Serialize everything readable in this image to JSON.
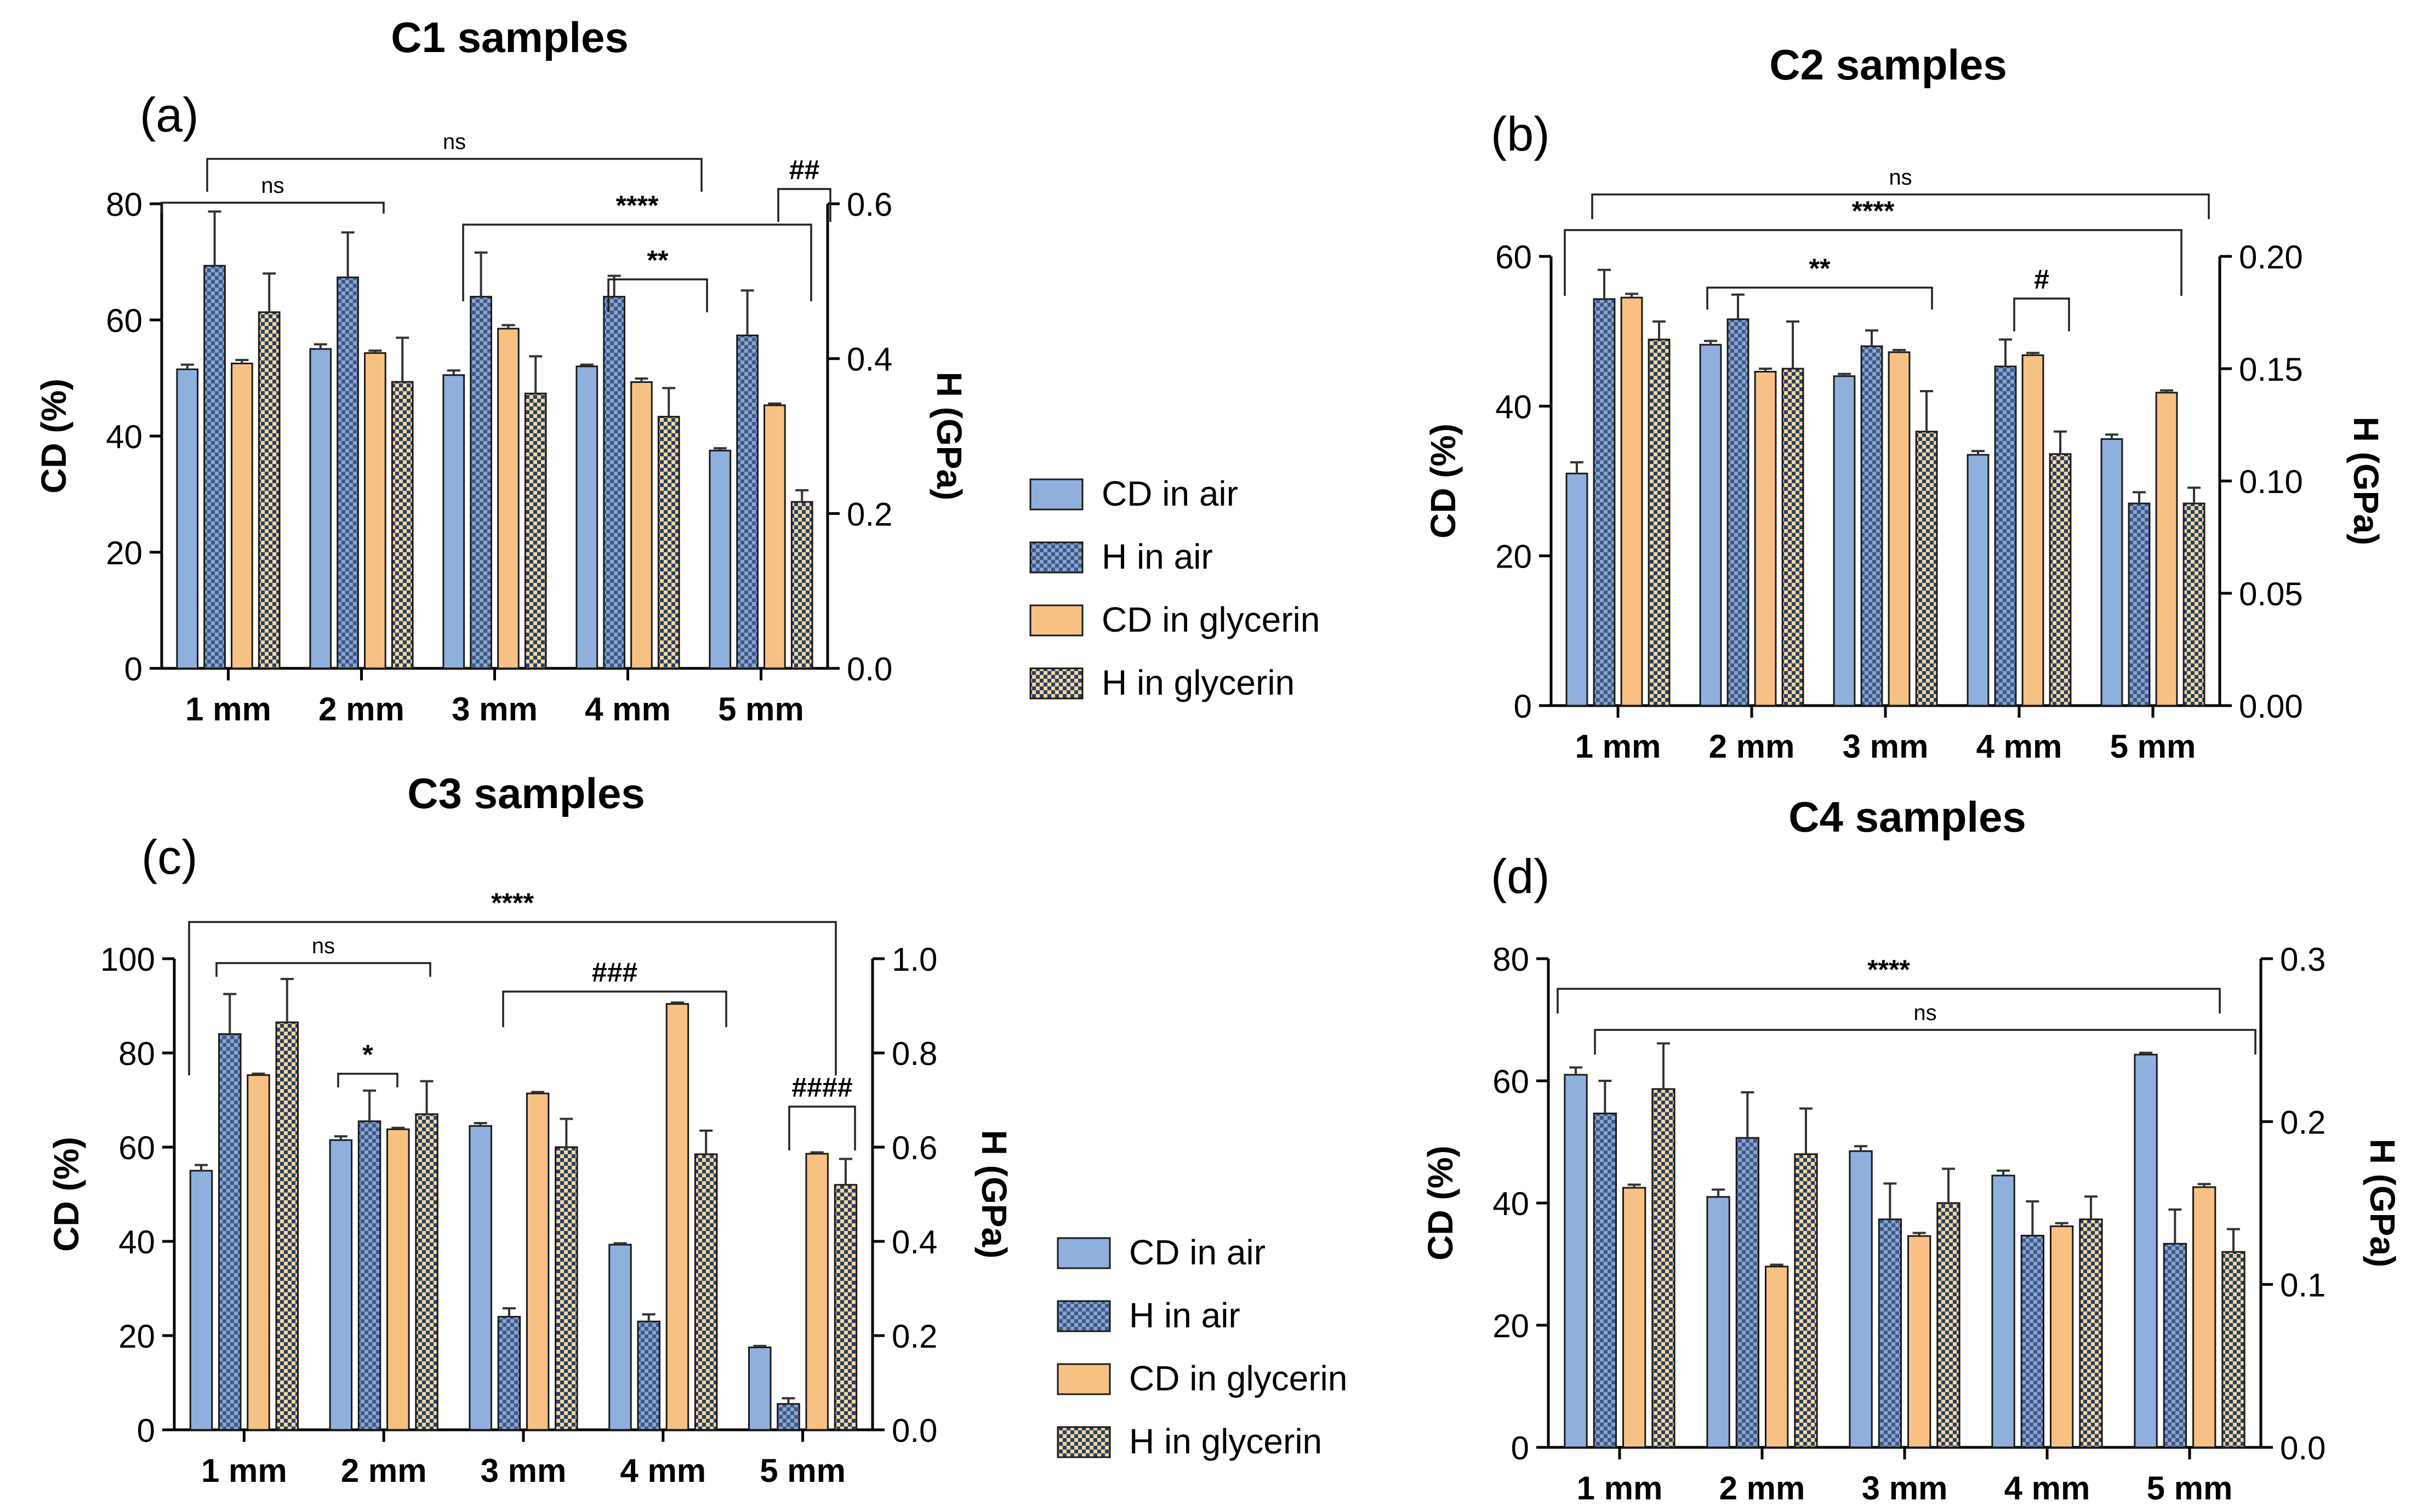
{
  "colors": {
    "cd_air": "#8fb0dd",
    "h_air_light": "#8aa3cf",
    "h_air_dark": "#3d5a86",
    "cd_gly": "#f6c183",
    "h_gly_light": "#f3d79c",
    "h_gly_dark": "#2c3e66",
    "axis": "#000000"
  },
  "chart_data": [
    {
      "id": "a",
      "type": "bar",
      "title": "C1 samples",
      "panel_label": "(a)",
      "categories": [
        "1 mm",
        "2 mm",
        "3 mm",
        "4 mm",
        "5 mm"
      ],
      "ylabel": "CD (%)",
      "y2label": "H (GPa)",
      "ylim": [
        0,
        80
      ],
      "y2lim": [
        0,
        0.6
      ],
      "yticks": [
        "0",
        "20",
        "40",
        "60",
        "80"
      ],
      "y2ticks": [
        "0.0",
        "0.2",
        "0.4",
        "0.6"
      ],
      "legend": [
        "CD in air",
        "H in air",
        "CD in glycerin",
        "H in glycerin"
      ],
      "series": [
        {
          "name": "CD in air",
          "axis": "left",
          "values": [
            51.5,
            55,
            50.5,
            52,
            37.5
          ],
          "errors": [
            0.8,
            0.8,
            0.8,
            0.3,
            0.4
          ]
        },
        {
          "name": "H in air",
          "axis": "right",
          "values": [
            0.52,
            0.505,
            0.48,
            0.48,
            0.43
          ],
          "errors": [
            0.07,
            0.058,
            0.057,
            0.027,
            0.058
          ]
        },
        {
          "name": "CD in glycerin",
          "axis": "left",
          "values": [
            52.5,
            54.3,
            58.5,
            49.3,
            45.3
          ],
          "errors": [
            0.6,
            0.4,
            0.6,
            0.6,
            0.3
          ]
        },
        {
          "name": "H in glycerin",
          "axis": "right",
          "values": [
            0.46,
            0.37,
            0.355,
            0.325,
            0.215
          ],
          "errors": [
            0.05,
            0.057,
            0.048,
            0.037,
            0.015
          ]
        }
      ],
      "significance": [
        {
          "label": "ns"
        },
        {
          "label": "ns"
        },
        {
          "label": "****"
        },
        {
          "label": "**"
        },
        {
          "label": "##"
        }
      ]
    },
    {
      "id": "b",
      "type": "bar",
      "title": "C2 samples",
      "panel_label": "(b)",
      "categories": [
        "1 mm",
        "2 mm",
        "3 mm",
        "4 mm",
        "5 mm"
      ],
      "ylabel": "CD (%)",
      "y2label": "H (GPa)",
      "ylim": [
        0,
        60
      ],
      "y2lim": [
        0,
        0.2
      ],
      "yticks": [
        "0",
        "20",
        "40",
        "60"
      ],
      "y2ticks": [
        "0.00",
        "0.05",
        "0.10",
        "0.15",
        "0.20"
      ],
      "legend": [],
      "series": [
        {
          "name": "CD in air",
          "axis": "left",
          "values": [
            31,
            48.2,
            44,
            33.5,
            35.6
          ],
          "errors": [
            1.5,
            0.5,
            0.3,
            0.5,
            0.6
          ]
        },
        {
          "name": "H in air",
          "axis": "right",
          "values": [
            0.181,
            0.172,
            0.16,
            0.151,
            0.09
          ],
          "errors": [
            0.013,
            0.011,
            0.007,
            0.012,
            0.005
          ]
        },
        {
          "name": "CD in glycerin",
          "axis": "left",
          "values": [
            54.5,
            44.6,
            47.2,
            46.8,
            41.8
          ],
          "errors": [
            0.5,
            0.4,
            0.3,
            0.3,
            0.3
          ]
        },
        {
          "name": "H in glycerin",
          "axis": "right",
          "values": [
            0.163,
            0.15,
            0.122,
            0.112,
            0.09
          ],
          "errors": [
            0.008,
            0.021,
            0.018,
            0.01,
            0.007
          ]
        }
      ],
      "significance": [
        {
          "label": "ns"
        },
        {
          "label": "****"
        },
        {
          "label": "**"
        },
        {
          "label": "#"
        }
      ]
    },
    {
      "id": "c",
      "type": "bar",
      "title": "C3 samples",
      "panel_label": "(c)",
      "categories": [
        "1 mm",
        "2 mm",
        "3 mm",
        "4 mm",
        "5 mm"
      ],
      "ylabel": "CD (%)",
      "y2label": "H (GPa)",
      "ylim": [
        0,
        100
      ],
      "y2lim": [
        0,
        1.0
      ],
      "yticks": [
        "0",
        "20",
        "40",
        "60",
        "80",
        "100"
      ],
      "y2ticks": [
        "0.0",
        "0.2",
        "0.4",
        "0.6",
        "0.8",
        "1.0"
      ],
      "legend": [
        "CD in air",
        "H in air",
        "CD in glycerin",
        "H in glycerin"
      ],
      "series": [
        {
          "name": "CD in air",
          "axis": "left",
          "values": [
            55,
            61.5,
            64.5,
            39.3,
            17.5
          ],
          "errors": [
            1.2,
            0.8,
            0.6,
            0.3,
            0.3
          ]
        },
        {
          "name": "H in air",
          "axis": "right",
          "values": [
            0.84,
            0.655,
            0.24,
            0.23,
            0.055
          ],
          "errors": [
            0.085,
            0.065,
            0.018,
            0.015,
            0.012
          ]
        },
        {
          "name": "CD in glycerin",
          "axis": "left",
          "values": [
            75.3,
            63.8,
            71.4,
            90.4,
            58.6
          ],
          "errors": [
            0.3,
            0.3,
            0.3,
            0.3,
            0.3
          ]
        },
        {
          "name": "H in glycerin",
          "axis": "right",
          "values": [
            0.865,
            0.67,
            0.6,
            0.585,
            0.52
          ],
          "errors": [
            0.092,
            0.07,
            0.06,
            0.05,
            0.055
          ]
        }
      ],
      "significance": [
        {
          "label": "****"
        },
        {
          "label": "ns"
        },
        {
          "label": "*"
        },
        {
          "label": "###"
        },
        {
          "label": "####"
        }
      ]
    },
    {
      "id": "d",
      "type": "bar",
      "title": "C4 samples",
      "panel_label": "(d)",
      "categories": [
        "1 mm",
        "2 mm",
        "3 mm",
        "4 mm",
        "5 mm"
      ],
      "ylabel": "CD (%)",
      "y2label": "H (GPa)",
      "ylim": [
        0,
        80
      ],
      "y2lim": [
        0,
        0.3
      ],
      "yticks": [
        "0",
        "20",
        "40",
        "60",
        "80"
      ],
      "y2ticks": [
        "0.0",
        "0.1",
        "0.2",
        "0.3"
      ],
      "legend": [],
      "series": [
        {
          "name": "CD in air",
          "axis": "left",
          "values": [
            61,
            41,
            48.5,
            44.5,
            64.3
          ],
          "errors": [
            1.2,
            1.2,
            0.8,
            0.8,
            0.3
          ]
        },
        {
          "name": "H in air",
          "axis": "right",
          "values": [
            0.205,
            0.19,
            0.14,
            0.13,
            0.125
          ],
          "errors": [
            0.02,
            0.028,
            0.022,
            0.021,
            0.021
          ]
        },
        {
          "name": "CD in glycerin",
          "axis": "left",
          "values": [
            42.5,
            29.6,
            34.6,
            36.2,
            42.6
          ],
          "errors": [
            0.5,
            0.3,
            0.5,
            0.5,
            0.5
          ]
        },
        {
          "name": "H in glycerin",
          "axis": "right",
          "values": [
            0.22,
            0.18,
            0.15,
            0.14,
            0.12
          ],
          "errors": [
            0.028,
            0.028,
            0.021,
            0.014,
            0.014
          ]
        }
      ],
      "significance": [
        {
          "label": "****"
        },
        {
          "label": "ns"
        }
      ]
    }
  ]
}
